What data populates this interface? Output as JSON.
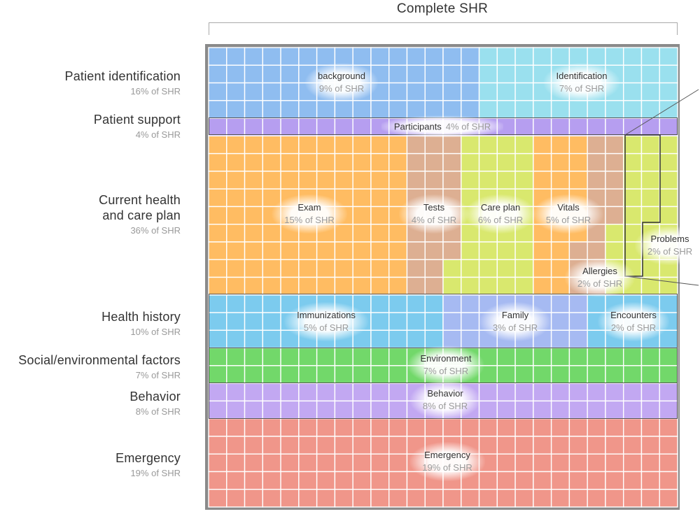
{
  "header": {
    "title": "Complete SHR"
  },
  "categories": [
    {
      "name": "Patient identification",
      "pct": "16% of SHR",
      "row": 3
    },
    {
      "name": "Patient support",
      "pct": "4% of SHR",
      "row": 1
    },
    {
      "name": "Current health\nand care plan",
      "pct": "36% of SHR",
      "row": 9
    },
    {
      "name": "Health history",
      "pct": "10% of SHR",
      "row": 3
    },
    {
      "name": "Social/environmental factors",
      "pct": "7% of SHR",
      "row": 2
    },
    {
      "name": "Behavior",
      "pct": "8% of SHR",
      "row": 2
    },
    {
      "name": "Emergency",
      "pct": "19% of SHR",
      "row": 5
    }
  ],
  "sections": [
    {
      "name": "background",
      "pct": "9% of SHR",
      "color": "#8fbdf0"
    },
    {
      "name": "Identification",
      "pct": "7% of SHR",
      "color": "#9ae0ee"
    },
    {
      "name": "Participants",
      "pct": "4% of SHR",
      "color": "#b69ef0"
    },
    {
      "name": "Exam",
      "pct": "15% of SHR",
      "color": "#ffbc62"
    },
    {
      "name": "Tests",
      "pct": "4% of SHR",
      "color": "#ddaf92"
    },
    {
      "name": "Care plan",
      "pct": "6% of SHR",
      "color": "#d9e86e"
    },
    {
      "name": "Vitals",
      "pct": "5% of SHR",
      "color": "#ffbc62"
    },
    {
      "name": "Problems",
      "pct": "2% of SHR",
      "color": "#d9e86e"
    },
    {
      "name": "Allergies",
      "pct": "2% of SHR",
      "color": "#ddaf92"
    },
    {
      "name": "Immunizations",
      "pct": "5% of SHR",
      "color": "#7ccbee"
    },
    {
      "name": "Family",
      "pct": "3% of SHR",
      "color": "#a6baf2"
    },
    {
      "name": "Encounters",
      "pct": "2% of SHR",
      "color": "#7ccbee"
    },
    {
      "name": "Environment",
      "pct": "7% of SHR",
      "color": "#72d86a"
    },
    {
      "name": "Behavior",
      "pct": "8% of SHR",
      "color": "#c2a8f2"
    },
    {
      "name": "Emergency",
      "pct": "19% of SHR",
      "color": "#f0968a"
    }
  ]
}
